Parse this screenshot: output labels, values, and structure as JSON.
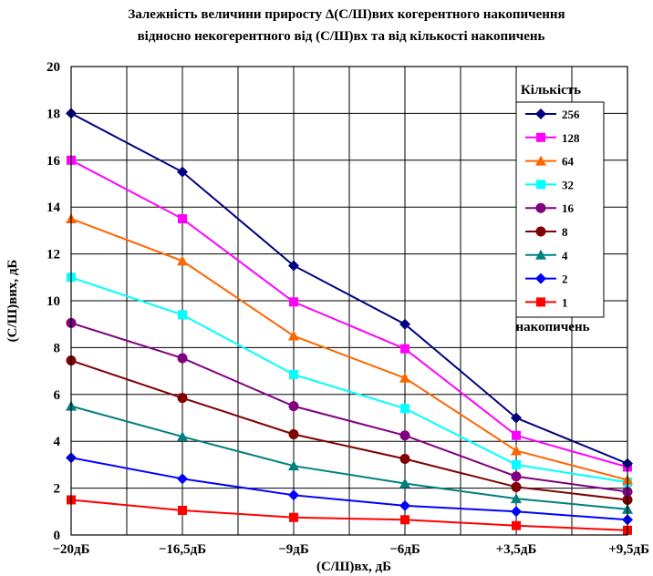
{
  "chart_data": {
    "type": "line",
    "title_line1": "Залежність величини приросту Δ(С/Ш)вих когерентного накопичення",
    "title_line2": "відносно некогерентного від (С/Ш)вх та від  кількості накопичень",
    "xlabel": "(С/Ш)вх, дБ",
    "ylabel": "(С/Ш)вих, дБ",
    "categories": [
      "−20дБ",
      "−16,5дБ",
      "−9дБ",
      "−6дБ",
      "+3,5дБ",
      "+9,5дБ"
    ],
    "ylim": [
      0,
      20
    ],
    "yticks": [
      "0",
      "2",
      "4",
      "6",
      "8",
      "10",
      "12",
      "14",
      "16",
      "18",
      "20"
    ],
    "grid": true,
    "legend_position": "top-right",
    "legend_title": "Кількість",
    "legend_footer": "накопичень",
    "series": [
      {
        "name": "256",
        "color": "#000080",
        "marker": "diamond",
        "values": [
          18.0,
          15.5,
          11.5,
          9.0,
          5.0,
          3.05
        ]
      },
      {
        "name": "128",
        "color": "#ff00ff",
        "marker": "square",
        "values": [
          16.0,
          13.5,
          9.95,
          7.95,
          4.25,
          2.9
        ]
      },
      {
        "name": "64",
        "color": "#ff6600",
        "marker": "triangle",
        "values": [
          13.5,
          11.7,
          8.5,
          6.7,
          3.6,
          2.35
        ]
      },
      {
        "name": "32",
        "color": "#00ffff",
        "marker": "square",
        "values": [
          11.0,
          9.4,
          6.85,
          5.4,
          3.0,
          2.25
        ]
      },
      {
        "name": "16",
        "color": "#800080",
        "marker": "circle",
        "values": [
          9.05,
          7.55,
          5.5,
          4.25,
          2.5,
          1.85
        ]
      },
      {
        "name": "8",
        "color": "#800000",
        "marker": "circle",
        "values": [
          7.45,
          5.85,
          4.3,
          3.25,
          2.05,
          1.5
        ]
      },
      {
        "name": "4",
        "color": "#008080",
        "marker": "triangle",
        "values": [
          5.5,
          4.2,
          2.95,
          2.2,
          1.55,
          1.1
        ]
      },
      {
        "name": "2",
        "color": "#0000ff",
        "marker": "diamond",
        "values": [
          3.3,
          2.4,
          1.7,
          1.25,
          1.0,
          0.65
        ]
      },
      {
        "name": "1",
        "color": "#ff0000",
        "marker": "square",
        "values": [
          1.5,
          1.05,
          0.75,
          0.65,
          0.4,
          0.2
        ]
      }
    ]
  }
}
